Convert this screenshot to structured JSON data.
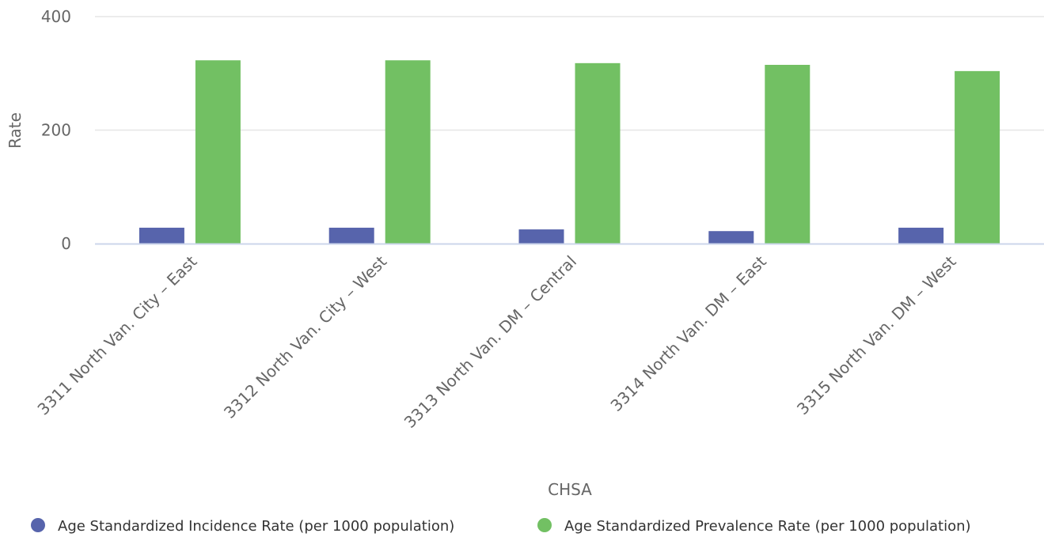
{
  "colors": {
    "incidence": "#5764ac",
    "prevalence": "#72c063",
    "grid": "#e6e6e6",
    "baseline": "#ccd6eb"
  },
  "chart_data": {
    "type": "bar",
    "xlabel": "CHSA",
    "ylabel": "Rate",
    "ylim": [
      0,
      400
    ],
    "yticks": [
      0,
      200,
      400
    ],
    "ytick_labels": [
      "0",
      "200",
      "400"
    ],
    "grid": true,
    "legend_position": "bottom",
    "categories": [
      "3311 North Van. City – East",
      "3312 North Van. City – West",
      "3313 North Van. DM – Central",
      "3314 North Van. DM – East",
      "3315 North Van. DM – West"
    ],
    "series": [
      {
        "name": "Age Standardized Incidence Rate (per 1000 population)",
        "color": "#5764ac",
        "values": [
          28,
          28,
          25,
          22,
          28
        ]
      },
      {
        "name": "Age Standardized Prevalence Rate (per 1000 population)",
        "color": "#72c063",
        "values": [
          323,
          323,
          318,
          315,
          304
        ]
      }
    ]
  }
}
